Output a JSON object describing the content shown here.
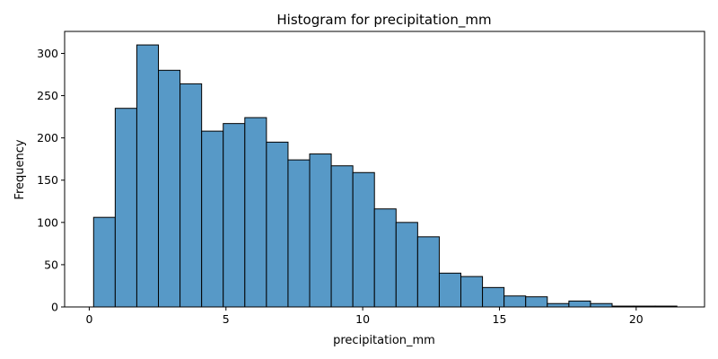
{
  "chart_data": {
    "type": "bar",
    "title": "Histogram for precipitation_mm",
    "xlabel": "precipitation_mm",
    "ylabel": "Frequency",
    "bar_color": "#5799c7",
    "edge_color": "#000000",
    "xlim": [
      -0.9,
      22.5
    ],
    "ylim": [
      0,
      326
    ],
    "xticks": [
      0,
      5,
      10,
      15,
      20
    ],
    "yticks": [
      0,
      50,
      100,
      150,
      200,
      250,
      300
    ],
    "grid": false,
    "bin_edges": [
      0.16,
      0.95,
      1.74,
      2.53,
      3.32,
      4.11,
      4.9,
      5.69,
      6.48,
      7.27,
      8.06,
      8.85,
      9.64,
      10.43,
      11.22,
      12.01,
      12.8,
      13.59,
      14.38,
      15.17,
      15.96,
      16.75,
      17.54,
      18.33,
      19.12,
      19.91,
      20.7,
      21.49
    ],
    "values": [
      106,
      235,
      310,
      280,
      264,
      208,
      217,
      224,
      195,
      174,
      181,
      167,
      159,
      116,
      100,
      83,
      40,
      36,
      23,
      13,
      12,
      4,
      7,
      4,
      1,
      1,
      1
    ]
  }
}
